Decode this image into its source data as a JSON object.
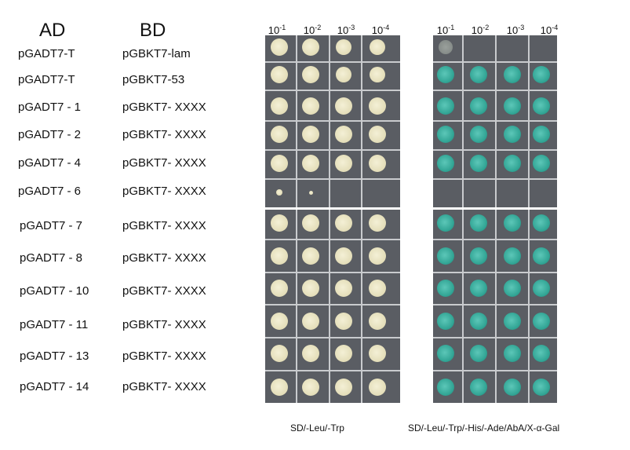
{
  "headers": {
    "ad": "AD",
    "bd": "BD"
  },
  "dilutions": [
    {
      "base": "10",
      "exp": "-1"
    },
    {
      "base": "10",
      "exp": "-2"
    },
    {
      "base": "10",
      "exp": "-3"
    },
    {
      "base": "10",
      "exp": "-4"
    }
  ],
  "rows": [
    {
      "ad": "pGADT7-T",
      "bd": "pGBKT7-lam"
    },
    {
      "ad": "pGADT7-T",
      "bd": "pGBKT7-53"
    },
    {
      "ad": "pGADT7 - 1",
      "bd": "pGBKT7- XXXX"
    },
    {
      "ad": "pGADT7 - 2",
      "bd": "pGBKT7- XXXX"
    },
    {
      "ad": "pGADT7 - 4",
      "bd": "pGBKT7- XXXX"
    },
    {
      "ad": "pGADT7 - 6",
      "bd": "pGBKT7- XXXX"
    },
    {
      "ad": "pGADT7 - 7",
      "bd": "pGBKT7- XXXX"
    },
    {
      "ad": "pGADT7 - 8",
      "bd": "pGBKT7- XXXX"
    },
    {
      "ad": "pGADT7 - 10",
      "bd": "pGBKT7- XXXX"
    },
    {
      "ad": "pGADT7 - 11",
      "bd": "pGBKT7- XXXX"
    },
    {
      "ad": "pGADT7 - 13",
      "bd": "pGBKT7- XXXX"
    },
    {
      "ad": "pGADT7 - 14",
      "bd": "pGBKT7- XXXX"
    }
  ],
  "captions": {
    "left": "SD/-Leu/-Trp",
    "right": "SD/-Leu/-Trp/-His/-Ade/AbA/X-α-Gal"
  },
  "colors": {
    "plate_background": "#5a5d63",
    "grid_line": "#c9cbce",
    "colony_white": "#e8e4c8",
    "colony_blue": "#3fb0a2"
  }
}
